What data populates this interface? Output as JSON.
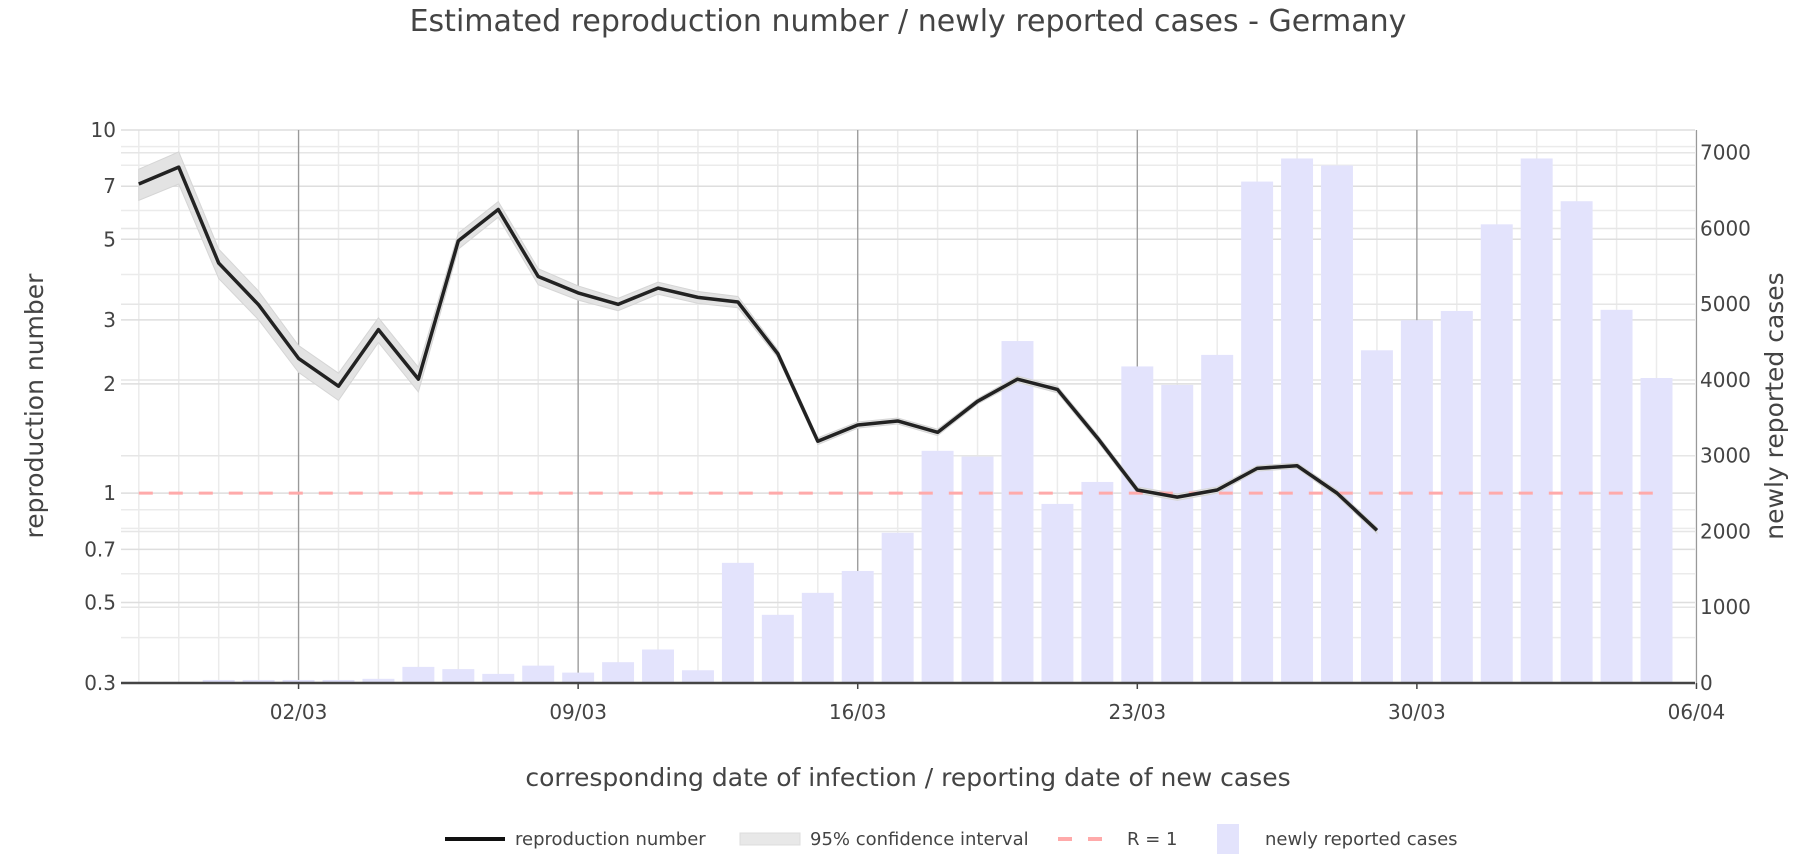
{
  "chart_data": {
    "type": "line+bar",
    "title": "Estimated reproduction number / newly reported cases - Germany",
    "xlabel": "corresponding date of infection / reporting date of new cases",
    "ylabel_left": "reproduction number",
    "ylabel_right": "newly reported cases",
    "y_left_scale": "log",
    "y_left_range": [
      0.3,
      10
    ],
    "y_left_ticks": [
      "0.3",
      "0.5",
      "0.7",
      "1",
      "2",
      "3",
      "5",
      "7",
      "10"
    ],
    "y_right_range": [
      0,
      7300
    ],
    "y_right_ticks": [
      "0",
      "1000",
      "2000",
      "3000",
      "4000",
      "5000",
      "6000",
      "7000"
    ],
    "x_ticks": [
      "02/03",
      "09/03",
      "16/03",
      "23/03",
      "30/03",
      "06/04"
    ],
    "grid": true,
    "legend_position": "bottom",
    "legend": [
      "reproduction number",
      "95% confidence interval",
      "R = 1",
      "newly reported cases"
    ],
    "colors": {
      "r_line": "#222222",
      "ci": "#e3e3e3",
      "r1": "#ffaaaa",
      "bars": "#e3e3fc"
    },
    "r_dates": [
      "27/02",
      "28/02",
      "29/02",
      "01/03",
      "02/03",
      "03/03",
      "04/03",
      "05/03",
      "06/03",
      "07/03",
      "08/03",
      "09/03",
      "10/03",
      "11/03",
      "12/03",
      "13/03",
      "14/03",
      "15/03",
      "16/03",
      "17/03",
      "18/03",
      "19/03",
      "20/03",
      "21/03",
      "22/03",
      "23/03",
      "24/03",
      "25/03",
      "26/03",
      "27/03",
      "28/03",
      "29/03"
    ],
    "r_values": [
      7.1,
      7.9,
      4.3,
      3.3,
      2.35,
      1.97,
      2.82,
      2.06,
      4.95,
      6.04,
      3.95,
      3.56,
      3.31,
      3.67,
      3.46,
      3.36,
      2.42,
      1.39,
      1.54,
      1.58,
      1.47,
      1.79,
      2.06,
      1.93,
      1.42,
      1.02,
      0.975,
      1.02,
      1.17,
      1.19,
      1.0,
      0.79
    ],
    "r_ci_lower": [
      6.4,
      7.1,
      3.9,
      3.0,
      2.15,
      1.8,
      2.6,
      1.9,
      4.7,
      5.75,
      3.75,
      3.4,
      3.18,
      3.53,
      3.33,
      3.24,
      2.36,
      1.36,
      1.51,
      1.55,
      1.44,
      1.76,
      2.02,
      1.89,
      1.39,
      1.0,
      0.955,
      1.0,
      1.15,
      1.17,
      0.98,
      0.775
    ],
    "r_ci_upper": [
      7.8,
      8.7,
      4.7,
      3.6,
      2.55,
      2.14,
      3.04,
      2.22,
      5.2,
      6.35,
      4.15,
      3.72,
      3.44,
      3.81,
      3.59,
      3.48,
      2.48,
      1.42,
      1.57,
      1.61,
      1.5,
      1.82,
      2.1,
      1.97,
      1.45,
      1.04,
      0.995,
      1.04,
      1.19,
      1.21,
      1.02,
      0.805
    ],
    "reference_line": 1,
    "case_dates": [
      "27/02",
      "28/02",
      "29/02",
      "01/03",
      "02/03",
      "03/03",
      "04/03",
      "05/03",
      "06/03",
      "07/03",
      "08/03",
      "09/03",
      "10/03",
      "11/03",
      "12/03",
      "13/03",
      "14/03",
      "15/03",
      "16/03",
      "17/03",
      "18/03",
      "19/03",
      "20/03",
      "21/03",
      "22/03",
      "23/03",
      "24/03",
      "25/03",
      "26/03",
      "27/03",
      "28/03",
      "29/03",
      "30/03",
      "31/03",
      "01/04",
      "02/04",
      "03/04",
      "04/04",
      "05/04"
    ],
    "cases": [
      15,
      15,
      40,
      40,
      40,
      40,
      55,
      213,
      183,
      120,
      229,
      137,
      275,
      442,
      168,
      1586,
      900,
      1190,
      1479,
      1983,
      3065,
      2989,
      4514,
      2364,
      2654,
      4179,
      3935,
      4331,
      6619,
      6924,
      6832,
      4392,
      4789,
      4911,
      6055,
      6924,
      6360,
      4926,
      4026
    ]
  }
}
